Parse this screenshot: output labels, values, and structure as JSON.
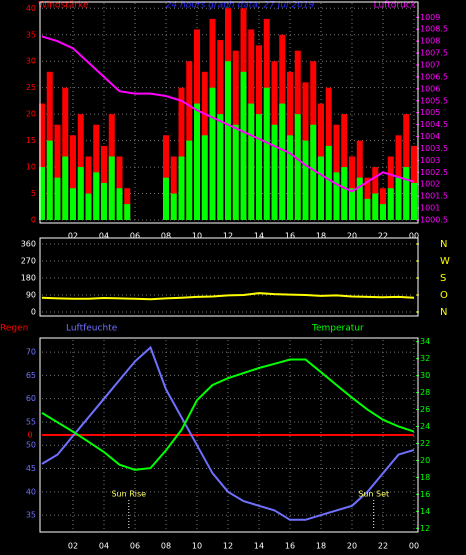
{
  "chart_data": [
    {
      "type": "bar_line",
      "title": "24 hours graph data, 27 Jul 2019",
      "y_label": "Windstärke",
      "y2_label": "Luftdruck",
      "xlim": [
        0,
        24
      ],
      "xticks": [
        {
          "value": 2,
          "label": "02"
        },
        {
          "value": 4,
          "label": "04"
        },
        {
          "value": 6,
          "label": "06"
        },
        {
          "value": 8,
          "label": "08"
        },
        10,
        12,
        14,
        16,
        18,
        20,
        22,
        {
          "value": 24,
          "label": "00"
        }
      ],
      "ylim": [
        0,
        41
      ],
      "yticks": [
        0,
        5,
        10,
        15,
        20,
        25,
        30,
        35,
        40
      ],
      "y2lim": [
        1000.5,
        1009.6
      ],
      "y2ticks": [
        1000.5,
        1001,
        1001.5,
        1002,
        1002.5,
        1003,
        1003.5,
        1004,
        1004.5,
        1005,
        1005.5,
        1006,
        1006.5,
        1007,
        1007.5,
        1008,
        1008.5,
        1009
      ],
      "grid": true,
      "series": [
        {
          "kind": "bar",
          "color": "#ff0000",
          "x": [
            0,
            0.5,
            1,
            1.5,
            2,
            2.5,
            3,
            3.5,
            4,
            4.5,
            5,
            5.5,
            6,
            6.5,
            7,
            7.5,
            8,
            8.5,
            9,
            9.5,
            10,
            10.5,
            11,
            11.5,
            12,
            12.5,
            13,
            13.5,
            14,
            14.5,
            15,
            15.5,
            16,
            16.5,
            17,
            17.5,
            18,
            18.5,
            19,
            19.5,
            20,
            20.5,
            21,
            21.5,
            22,
            22.5,
            23,
            23.5,
            24
          ],
          "values": [
            22,
            28,
            18,
            25,
            16,
            20,
            12,
            18,
            14,
            20,
            12,
            6,
            0,
            0,
            0,
            0,
            16,
            12,
            25,
            30,
            36,
            28,
            38,
            34,
            40,
            32,
            40,
            36,
            33,
            38,
            30,
            35,
            28,
            32,
            26,
            30,
            22,
            25,
            18,
            20,
            12,
            15,
            8,
            10,
            6,
            12,
            16,
            20,
            14
          ]
        },
        {
          "kind": "bar",
          "color": "#00ff00",
          "x": [
            0,
            0.5,
            1,
            1.5,
            2,
            2.5,
            3,
            3.5,
            4,
            4.5,
            5,
            5.5,
            6,
            6.5,
            7,
            7.5,
            8,
            8.5,
            9,
            9.5,
            10,
            10.5,
            11,
            11.5,
            12,
            12.5,
            13,
            13.5,
            14,
            14.5,
            15,
            15.5,
            16,
            16.5,
            17,
            17.5,
            18,
            18.5,
            19,
            19.5,
            20,
            20.5,
            21,
            21.5,
            22,
            22.5,
            23,
            23.5,
            24
          ],
          "values": [
            10,
            15,
            8,
            12,
            6,
            10,
            5,
            9,
            7,
            12,
            6,
            3,
            0,
            0,
            0,
            0,
            8,
            5,
            12,
            15,
            22,
            16,
            25,
            20,
            30,
            18,
            28,
            22,
            20,
            25,
            18,
            22,
            16,
            20,
            15,
            18,
            12,
            14,
            9,
            10,
            6,
            8,
            4,
            5,
            3,
            6,
            8,
            10,
            7
          ]
        },
        {
          "kind": "line",
          "axis": "y2",
          "color": "#ff00ff",
          "x": [
            0,
            1,
            2,
            3,
            4,
            5,
            6,
            7,
            8,
            9,
            10,
            11,
            12,
            13,
            14,
            15,
            16,
            17,
            18,
            19,
            20,
            21,
            22,
            23,
            24
          ],
          "values": [
            1008.2,
            1008.0,
            1007.7,
            1007.1,
            1006.5,
            1005.9,
            1005.8,
            1005.8,
            1005.7,
            1005.5,
            1005.1,
            1004.8,
            1004.5,
            1004.2,
            1003.9,
            1003.6,
            1003.3,
            1002.8,
            1002.4,
            1002.0,
            1001.7,
            1002.1,
            1002.5,
            1002.3,
            1002.1
          ]
        }
      ]
    },
    {
      "type": "line",
      "xlim": [
        0,
        24
      ],
      "ylim": [
        0,
        360
      ],
      "yticks": [
        0,
        90,
        180,
        270,
        360
      ],
      "y2ticks": [
        {
          "value": 360,
          "label": "N"
        },
        {
          "value": 270,
          "label": "W"
        },
        {
          "value": 180,
          "label": "S"
        },
        {
          "value": 90,
          "label": "O"
        },
        {
          "value": 0,
          "label": "N"
        }
      ],
      "grid": true,
      "series": [
        {
          "kind": "line",
          "color": "#ffff00",
          "x": [
            0,
            1,
            2,
            3,
            4,
            5,
            6,
            7,
            8,
            9,
            10,
            11,
            12,
            13,
            14,
            15,
            16,
            17,
            18,
            19,
            20,
            21,
            22,
            23,
            24
          ],
          "values": [
            75,
            72,
            70,
            70,
            74,
            72,
            70,
            68,
            72,
            75,
            80,
            82,
            88,
            90,
            100,
            95,
            92,
            90,
            85,
            88,
            82,
            80,
            78,
            80,
            75
          ]
        }
      ]
    },
    {
      "type": "line",
      "y3_label": "Regen",
      "y_label": "Luftfeuchte",
      "y2_label": "Temperatur",
      "xlim": [
        0,
        24
      ],
      "xticks": [
        {
          "value": 2,
          "label": "02"
        },
        {
          "value": 4,
          "label": "04"
        },
        {
          "value": 6,
          "label": "06"
        },
        {
          "value": 8,
          "label": "08"
        },
        10,
        12,
        14,
        16,
        18,
        20,
        22,
        {
          "value": 24,
          "label": "00"
        }
      ],
      "ylim": [
        31.8,
        72.6
      ],
      "yticks": [
        35,
        40,
        45,
        50,
        55,
        60,
        65,
        70
      ],
      "y2lim": [
        11.8,
        34.2
      ],
      "y2ticks": [
        12,
        14,
        16,
        18,
        20,
        22,
        24,
        26,
        28,
        30,
        32,
        34
      ],
      "y3lim": [
        -1,
        1
      ],
      "y3ticks": [
        0
      ],
      "grid": true,
      "annotations": [
        {
          "text": "Sun Rise",
          "x": 5.6
        },
        {
          "text": "Sun Set",
          "x": 21.4
        }
      ],
      "series": [
        {
          "kind": "line",
          "axis": "y3",
          "color": "#ff0000",
          "x": [
            0,
            24
          ],
          "values": [
            0,
            0
          ]
        },
        {
          "kind": "line",
          "color": "#7070ff",
          "x": [
            0,
            1,
            2,
            3,
            4,
            5,
            6,
            7,
            8,
            9,
            10,
            11,
            12,
            13,
            14,
            15,
            16,
            17,
            18,
            19,
            20,
            21,
            22,
            23,
            24
          ],
          "values": [
            46,
            48,
            52,
            56,
            60,
            64,
            68,
            71,
            62,
            56,
            50,
            44,
            40,
            38,
            37,
            36,
            34,
            34,
            35,
            36,
            37,
            40,
            44,
            48,
            49
          ]
        },
        {
          "kind": "line",
          "axis": "y2",
          "color": "#00ff00",
          "x": [
            0,
            1,
            2,
            3,
            4,
            5,
            6,
            7,
            8,
            9,
            10,
            11,
            12,
            13,
            14,
            15,
            16,
            17,
            18,
            19,
            20,
            21,
            22,
            23,
            24
          ],
          "values": [
            25.6,
            24.5,
            23.4,
            22.2,
            21,
            19.5,
            18.9,
            19.1,
            21.2,
            23.6,
            27.1,
            28.9,
            29.7,
            30.3,
            30.9,
            31.4,
            31.9,
            31.9,
            30.4,
            28.9,
            27.4,
            26,
            24.8,
            24,
            23.4
          ]
        }
      ]
    }
  ]
}
